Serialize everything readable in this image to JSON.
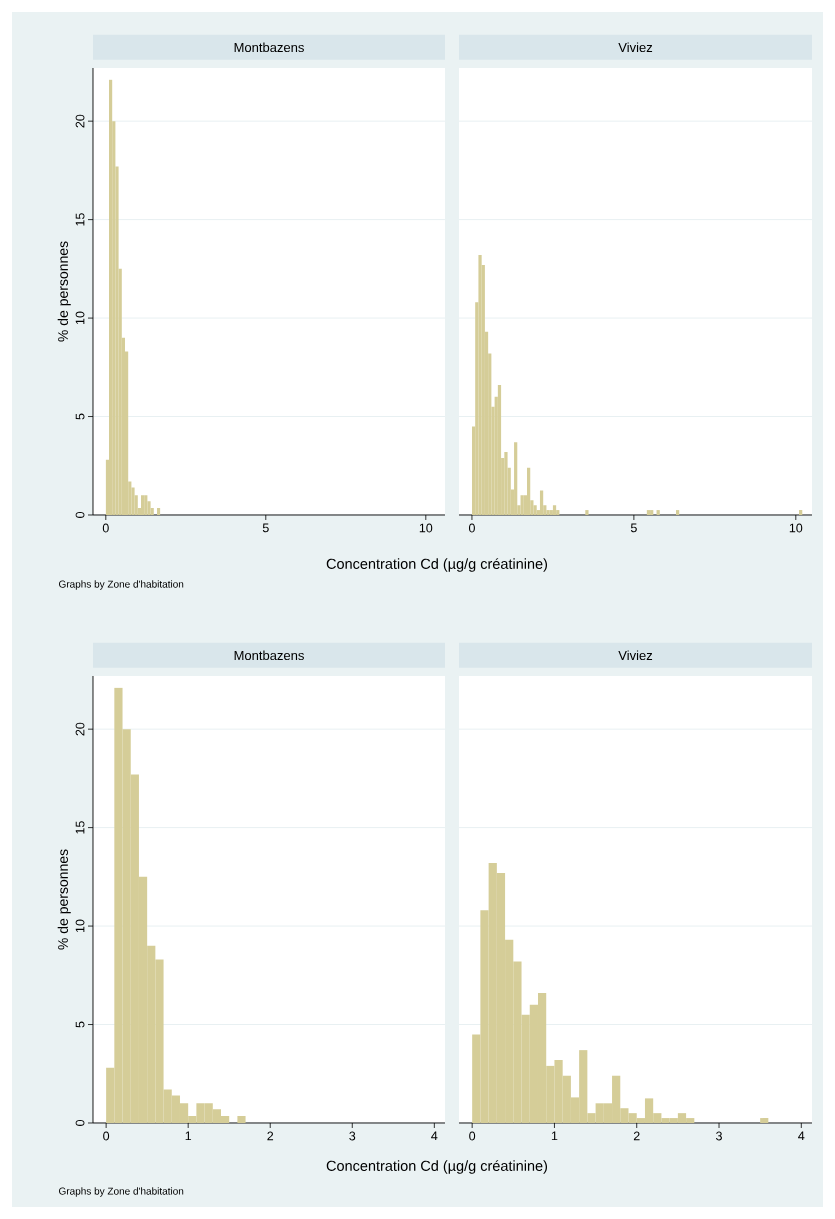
{
  "chart_data": [
    {
      "type": "histogram",
      "title": "Montbazens",
      "xlabel": "Concentration Cd (µg/g créatinine)",
      "ylabel": "% de personnes",
      "annotations": [
        "Graphs by Zone d'habitation"
      ],
      "color": "#d5cd98",
      "grid": "y",
      "bins": [
        0,
        0.1,
        0.2,
        0.3,
        0.4,
        0.5,
        0.6,
        0.7,
        0.8,
        0.9,
        1,
        1.1,
        1.2,
        1.3,
        1.4,
        1.5,
        1.6,
        1.7
      ],
      "values": [
        2.8,
        22.1,
        20.0,
        17.7,
        12.5,
        9.0,
        8.3,
        1.7,
        1.4,
        1.0,
        0.35,
        1.0,
        1.0,
        0.7,
        0.35,
        0,
        0.35
      ],
      "xlim": [
        -0.4,
        10.6
      ],
      "ylim": [
        0,
        22.7
      ],
      "xticks": [
        0,
        5,
        10
      ],
      "yticks": [
        0,
        5,
        10,
        15,
        20
      ]
    },
    {
      "type": "histogram",
      "title": "Viviez",
      "color": "#d5cd98",
      "grid": "y",
      "tick_labels": "x",
      "bins": [
        0,
        0.1,
        0.2,
        0.3,
        0.4,
        0.5,
        0.6,
        0.7,
        0.8,
        0.9,
        1,
        1.1,
        1.2,
        1.3,
        1.4,
        1.5,
        1.6,
        1.7,
        1.8,
        1.9,
        2,
        2.1,
        2.2,
        2.3,
        2.4,
        2.5,
        2.6,
        2.7,
        2.8,
        2.9,
        3,
        3.1,
        3.2,
        3.3,
        3.4,
        3.5,
        3.6,
        3.7,
        3.8,
        3.9,
        4,
        4.1,
        4.2,
        4.3,
        4.4,
        4.5,
        4.6,
        4.7,
        4.8,
        4.9,
        5,
        5.1,
        5.2,
        5.3,
        5.4,
        5.5,
        5.6,
        5.7,
        5.8,
        5.9,
        6,
        6.1,
        6.2,
        6.3,
        6.4,
        6.5,
        6.6,
        6.7,
        6.8,
        6.9,
        7,
        7.1,
        7.2,
        7.3,
        7.4,
        7.5,
        7.6,
        7.7,
        7.8,
        7.9,
        8,
        8.1,
        8.2,
        8.3,
        8.4,
        8.5,
        8.6,
        8.7,
        8.8,
        8.9,
        9,
        9.1,
        9.2,
        9.3,
        9.4,
        9.5,
        9.6,
        9.7,
        9.8,
        9.9,
        10,
        10.1,
        10.2
      ],
      "values": [
        4.5,
        10.8,
        13.2,
        12.7,
        9.3,
        8.2,
        5.5,
        6.0,
        6.6,
        2.9,
        3.2,
        2.4,
        1.3,
        3.7,
        0.5,
        1.0,
        1.0,
        2.4,
        0.75,
        0.5,
        0.25,
        1.25,
        0.5,
        0.25,
        0.25,
        0.5,
        0.25,
        0,
        0,
        0,
        0,
        0,
        0,
        0,
        0,
        0.25,
        0,
        0,
        0,
        0,
        0,
        0,
        0,
        0,
        0,
        0,
        0,
        0,
        0,
        0,
        0,
        0,
        0,
        0,
        0.25,
        0.25,
        0,
        0.25,
        0,
        0,
        0,
        0,
        0,
        0.25,
        0,
        0,
        0,
        0,
        0,
        0,
        0,
        0,
        0,
        0,
        0,
        0,
        0,
        0,
        0,
        0,
        0,
        0,
        0,
        0,
        0,
        0,
        0,
        0,
        0,
        0,
        0,
        0,
        0,
        0,
        0,
        0,
        0,
        0,
        0,
        0,
        0,
        0.25
      ],
      "xlim": [
        -0.4,
        10.5
      ],
      "ylim": [
        0,
        22.7
      ],
      "xticks": [
        0,
        5,
        10
      ],
      "yticks": [
        0,
        5,
        10,
        15,
        20
      ]
    },
    {
      "type": "histogram",
      "title": "Montbazens",
      "xlabel": "Concentration Cd (µg/g créatinine)",
      "ylabel": "% de personnes",
      "annotations": [
        "Graphs by Zone d'habitation"
      ],
      "color": "#d5cd98",
      "grid": "y",
      "bins": [
        0,
        0.1,
        0.2,
        0.3,
        0.4,
        0.5,
        0.6,
        0.7,
        0.8,
        0.9,
        1,
        1.1,
        1.2,
        1.3,
        1.4,
        1.5,
        1.6,
        1.7
      ],
      "values": [
        2.8,
        22.1,
        20.0,
        17.7,
        12.5,
        9.0,
        8.3,
        1.7,
        1.4,
        1.0,
        0.35,
        1.0,
        1.0,
        0.7,
        0.35,
        0,
        0.35
      ],
      "xlim": [
        -0.16,
        4.13
      ],
      "ylim": [
        0,
        22.7
      ],
      "xticks": [
        0,
        1,
        2,
        3,
        4
      ],
      "yticks": [
        0,
        5,
        10,
        15,
        20
      ]
    },
    {
      "type": "histogram",
      "title": "Viviez",
      "color": "#d5cd98",
      "grid": "y",
      "tick_labels": "x",
      "bins": [
        0,
        0.1,
        0.2,
        0.3,
        0.4,
        0.5,
        0.6,
        0.7,
        0.8,
        0.9,
        1,
        1.1,
        1.2,
        1.3,
        1.4,
        1.5,
        1.6,
        1.7,
        1.8,
        1.9,
        2,
        2.1,
        2.2,
        2.3,
        2.4,
        2.5,
        2.6,
        2.7,
        2.8,
        2.9,
        3,
        3.1,
        3.2,
        3.3,
        3.4,
        3.5,
        3.6
      ],
      "values": [
        4.5,
        10.8,
        13.2,
        12.7,
        9.3,
        8.2,
        5.5,
        6.0,
        6.6,
        2.9,
        3.2,
        2.4,
        1.3,
        3.7,
        0.5,
        1.0,
        1.0,
        2.4,
        0.75,
        0.5,
        0.25,
        1.25,
        0.5,
        0.25,
        0.25,
        0.5,
        0.25,
        0,
        0,
        0,
        0,
        0,
        0,
        0,
        0,
        0.25
      ],
      "xlim": [
        -0.16,
        4.13
      ],
      "ylim": [
        0,
        22.7
      ],
      "xticks": [
        0,
        1,
        2,
        3,
        4
      ],
      "yticks": [
        0,
        5,
        10,
        15,
        20
      ]
    }
  ]
}
